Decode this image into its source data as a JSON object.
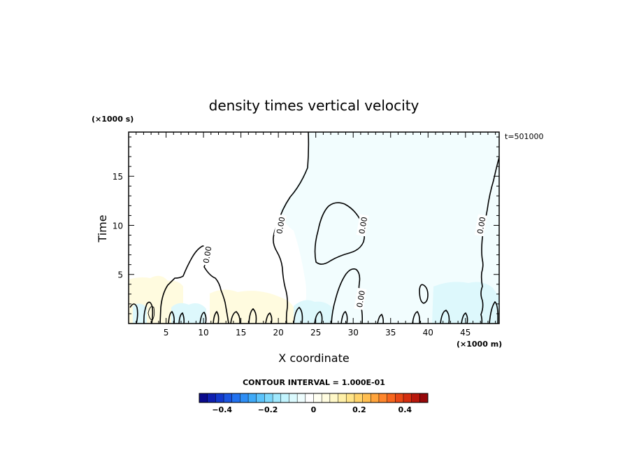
{
  "chart_data": {
    "type": "contour",
    "title": "density times vertical velocity",
    "xlabel": "X coordinate",
    "ylabel": "Time",
    "x_unit_label": "(×1000 m)",
    "y_unit_label": "(×1000 s)",
    "time_stamp": "t=501000",
    "xlim": [
      0,
      49.5
    ],
    "ylim": [
      0,
      19.5
    ],
    "x_ticks": [
      {
        "value": 5,
        "label": "5"
      },
      {
        "value": 10,
        "label": "10"
      },
      {
        "value": 15,
        "label": "15"
      },
      {
        "value": 20,
        "label": "20"
      },
      {
        "value": 25,
        "label": "25"
      },
      {
        "value": 30,
        "label": "30"
      },
      {
        "value": 35,
        "label": "35"
      },
      {
        "value": 40,
        "label": "40"
      },
      {
        "value": 45,
        "label": "45"
      }
    ],
    "y_ticks": [
      {
        "value": 5,
        "label": "5"
      },
      {
        "value": 10,
        "label": "10"
      },
      {
        "value": 15,
        "label": "15"
      }
    ],
    "contour_level_labels": [
      {
        "x": 10.5,
        "y": 7.0,
        "text": "0.00"
      },
      {
        "x": 20.3,
        "y": 10.0,
        "text": "0.00"
      },
      {
        "x": 31.3,
        "y": 10.0,
        "text": "0.00"
      },
      {
        "x": 31.0,
        "y": 2.5,
        "text": "0.00"
      },
      {
        "x": 47.1,
        "y": 10.0,
        "text": "0.00"
      }
    ],
    "contour_interval_text": "CONTOUR INTERVAL = 1.000E-01",
    "colorbar": {
      "range": [
        -0.5,
        0.5
      ],
      "ticks": [
        {
          "value": -0.4,
          "label": "−0.4"
        },
        {
          "value": -0.2,
          "label": "−0.2"
        },
        {
          "value": 0,
          "label": "0"
        },
        {
          "value": 0.2,
          "label": "0.2"
        },
        {
          "value": 0.4,
          "label": "0.4"
        }
      ],
      "colors": [
        "#0a0a8c",
        "#0e1fb0",
        "#1238cc",
        "#1a55e0",
        "#2272f0",
        "#2e8ef5",
        "#3faaf8",
        "#5bc3fb",
        "#7cd8fc",
        "#a0e8fd",
        "#c2f4fe",
        "#dbfafe",
        "#eefdfe",
        "#ffffff",
        "#fffff2",
        "#fffce0",
        "#fff8c8",
        "#fff0a8",
        "#ffe488",
        "#ffd36a",
        "#ffbe50",
        "#ffa43c",
        "#ff862c",
        "#f7661e",
        "#e84816",
        "#d42e10",
        "#b8180c",
        "#96080a"
      ]
    },
    "shading": [
      {
        "region": "x 24–49.5, y 0–19.5",
        "value_range": [
          -0.05,
          0
        ],
        "color": "#f2fdfe"
      },
      {
        "region": "x 0–6, y 0–5",
        "value_range": [
          0,
          0.05
        ],
        "color": "#fffbdf"
      },
      {
        "region": "x 10–23, y 0–2.5",
        "value_range": [
          0,
          0.05
        ],
        "color": "#fffbdf"
      },
      {
        "region": "x 5–20, y 0–2.5",
        "value_range": [
          -0.1,
          -0.05
        ],
        "color": "#ddf8fc"
      },
      {
        "region": "x 21–28, y 0–2.5",
        "value_range": [
          -0.1,
          -0.05
        ],
        "color": "#ddf8fc"
      },
      {
        "region": "x 41–49, y 0–5",
        "value_range": [
          -0.1,
          -0.05
        ],
        "color": "#ddf8fc"
      }
    ]
  }
}
